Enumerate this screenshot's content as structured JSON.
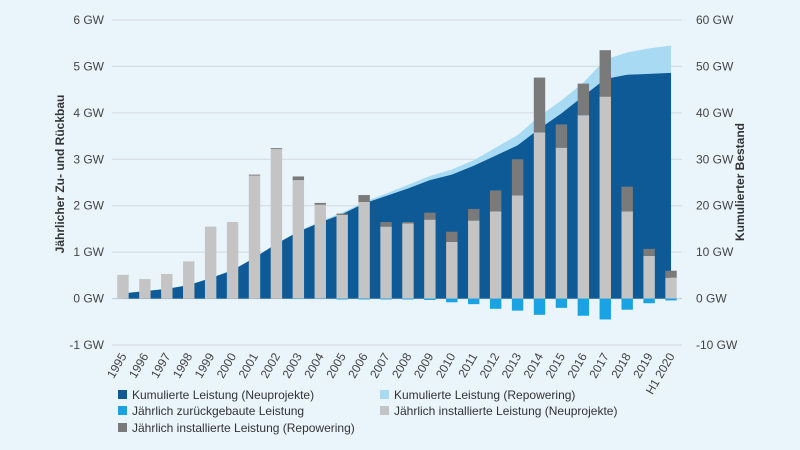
{
  "chart_data": {
    "type": "bar",
    "categories": [
      "1995",
      "1996",
      "1997",
      "1998",
      "1999",
      "2000",
      "2001",
      "2002",
      "2003",
      "2004",
      "2005",
      "2006",
      "2007",
      "2008",
      "2009",
      "2010",
      "2011",
      "2012",
      "2013",
      "2014",
      "2015",
      "2016",
      "2017",
      "2018",
      "2019",
      "H1 2020"
    ],
    "left_axis": {
      "label": "Jährlicher Zu- und Rückbau",
      "range": [
        -1,
        6
      ],
      "ticks": [
        "-1 GW",
        "0 GW",
        "1 GW",
        "2 GW",
        "3 GW",
        "4 GW",
        "5 GW",
        "6 GW"
      ]
    },
    "right_axis": {
      "label": "Kumulierter Bestand",
      "range": [
        -10,
        60
      ],
      "ticks": [
        "-10 GW",
        "0 GW",
        "10 GW",
        "20 GW",
        "30 GW",
        "40 GW",
        "50 GW",
        "60 GW"
      ]
    },
    "series": [
      {
        "name": "Kumulierte Leistung (Neuprojekte)",
        "axis": "right",
        "type": "area",
        "color": "#0d5a96",
        "values": [
          1.1,
          1.6,
          2.1,
          2.9,
          4.4,
          6.1,
          8.8,
          11.8,
          14.4,
          16.4,
          18.2,
          20.5,
          22.1,
          23.7,
          25.5,
          26.7,
          28.6,
          30.8,
          33.0,
          36.6,
          39.9,
          43.6,
          47.3,
          48.2,
          48.4,
          48.6
        ]
      },
      {
        "name": "Kumulierte Leistung (Repowering)",
        "axis": "right",
        "type": "area",
        "color": "#a8dbf3",
        "values": [
          1.1,
          1.6,
          2.1,
          2.9,
          4.4,
          6.1,
          8.8,
          11.8,
          14.5,
          16.6,
          18.5,
          20.8,
          22.6,
          24.5,
          26.4,
          27.8,
          29.8,
          32.5,
          35.2,
          39.3,
          42.7,
          46.5,
          51.5,
          53.0,
          53.9,
          54.5
        ]
      },
      {
        "name": "Jährlich installierte Leistung (Neuprojekte)",
        "axis": "left",
        "type": "bar",
        "color": "#c4c4c4",
        "values": [
          0.51,
          0.42,
          0.53,
          0.8,
          1.55,
          1.65,
          2.65,
          3.22,
          2.55,
          2.02,
          1.8,
          2.08,
          1.55,
          1.62,
          1.7,
          1.22,
          1.68,
          1.88,
          2.22,
          3.58,
          3.25,
          3.95,
          4.35,
          1.88,
          0.92,
          0.45
        ]
      },
      {
        "name": "Jährlich installierte Leistung (Repowering)",
        "axis": "left",
        "type": "bar",
        "color": "#7a7a7a",
        "values": [
          0,
          0,
          0,
          0,
          0,
          0,
          0.02,
          0.02,
          0.08,
          0.04,
          0.03,
          0.15,
          0.1,
          0.03,
          0.15,
          0.22,
          0.25,
          0.45,
          0.78,
          1.18,
          0.5,
          0.68,
          1.0,
          0.53,
          0.15,
          0.15
        ]
      },
      {
        "name": "Jährlich zurückgebaute Leistung",
        "axis": "left",
        "type": "bar",
        "color": "#1aa3e2",
        "values": [
          0,
          0,
          0,
          0,
          0,
          0,
          0,
          0,
          -0.01,
          -0.01,
          -0.02,
          -0.02,
          -0.02,
          -0.02,
          -0.03,
          -0.08,
          -0.12,
          -0.22,
          -0.26,
          -0.35,
          -0.2,
          -0.37,
          -0.45,
          -0.24,
          -0.1,
          -0.04
        ]
      }
    ],
    "legend": [
      {
        "label": "Kumulierte Leistung (Neuprojekte)",
        "color": "#0d5a96"
      },
      {
        "label": "Kumulierte Leistung (Repowering)",
        "color": "#a8dbf3"
      },
      {
        "label": "Jährlich zurückgebaute Leistung",
        "color": "#1aa3e2"
      },
      {
        "label": "Jährlich installierte Leistung (Neuprojekte)",
        "color": "#c4c4c4"
      },
      {
        "label": "Jährlich installierte Leistung (Repowering)",
        "color": "#7a7a7a"
      }
    ],
    "legend_position": "bottom",
    "grid": true
  }
}
